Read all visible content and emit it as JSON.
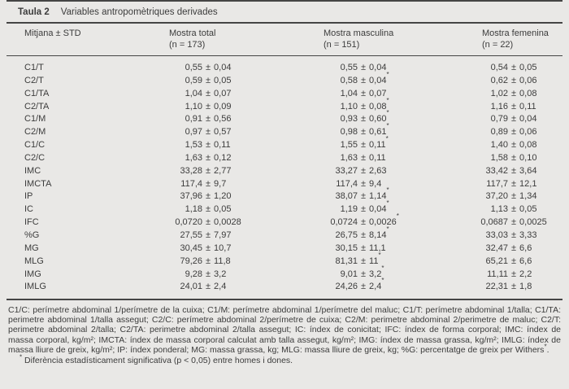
{
  "title": {
    "label": "Taula 2",
    "text": "Variables antropomètriques derivades"
  },
  "header": {
    "stat_label": "Mitjana ± STD",
    "columns": [
      {
        "name": "Mostra total",
        "n": "(n = 173)"
      },
      {
        "name": "Mostra masculina",
        "n": "(n = 151)"
      },
      {
        "name": "Mostra femenina",
        "n": "(n = 22)"
      }
    ]
  },
  "rows": [
    {
      "label": "C1/T",
      "total": "0,55 ± 0,04",
      "masc": "0,55 ± 0,04",
      "fem": "0,54 ± 0,05"
    },
    {
      "label": "C2/T",
      "total": "0,59 ± 0,05",
      "masc": "0,58 ± 0,04*",
      "fem": "0,62 ± 0,06"
    },
    {
      "label": "C1/TA",
      "total": "1,04 ± 0,07",
      "masc": "1,04 ± 0,07",
      "fem": "1,02 ± 0,08"
    },
    {
      "label": "C2/TA",
      "total": "1,10 ± 0,09",
      "masc": "1,10 ± 0,08*",
      "fem": "1,16 ± 0,11"
    },
    {
      "label": "C1/M",
      "total": "0,91 ± 0,56",
      "masc": "0,93 ± 0,60*",
      "fem": "0,79 ± 0,04"
    },
    {
      "label": "C2/M",
      "total": "0,97 ± 0,57",
      "masc": "0,98 ± 0,61*",
      "fem": "0,89 ± 0,06"
    },
    {
      "label": "C1/C",
      "total": "1,53 ± 0,11",
      "masc": "1,55 ± 0,11*",
      "fem": "1,40 ± 0,08"
    },
    {
      "label": "C2/C",
      "total": "1,63 ± 0,12",
      "masc": "1,63 ± 0,11",
      "fem": "1,58 ± 0,10"
    },
    {
      "label": "IMC",
      "total": "33,28 ± 2,77",
      "masc": "33,27 ± 2,63",
      "fem": "33,42 ± 3,64"
    },
    {
      "label": "IMCTA",
      "total": "117,4 ± 9,7",
      "masc": "117,4 ± 9,4",
      "fem": "117,7 ± 12,1"
    },
    {
      "label": "IP",
      "total": "37,96 ± 1,20",
      "masc": "38,07 ± 1,14*",
      "fem": "37,20 ± 1,34"
    },
    {
      "label": "IC",
      "total": "1,18 ± 0,05",
      "masc": "1,19 ± 0,04*",
      "fem": "1,13 ± 0,05"
    },
    {
      "label": "IFC",
      "total": "0,0720 ± 0,0028",
      "masc": "0,0724 ± 0,0026*",
      "fem": "0,0687 ± 0,0025"
    },
    {
      "label": "%G",
      "total": "27,55 ± 7,97",
      "masc": "26,75 ± 8,14*",
      "fem": "33,03 ± 3,33"
    },
    {
      "label": "MG",
      "total": "30,45 ± 10,7",
      "masc": "30,15 ± 11,1",
      "fem": "32,47 ± 6,6"
    },
    {
      "label": "MLG",
      "total": "79,26 ± 11,8",
      "masc": "81,31 ± 11*",
      "fem": "65,21 ± 6,6"
    },
    {
      "label": "IMG",
      "total": "9,28 ± 3,2",
      "masc": "9,01 ± 3,2*",
      "fem": "11,11 ± 2,2"
    },
    {
      "label": "IMLG",
      "total": "24,01 ± 2,4",
      "masc": "24,26 ± 2,4*",
      "fem": "22,31 ± 1,8"
    }
  ],
  "footnote": {
    "text": "C1/C: perímetre abdominal 1/perímetre de la cuixa; C1/M: perímetre abdominal 1/perímetre del maluc; C1/T: perímetre abdominal 1/talla; C1/TA: perimetre abdominal 1/talla assegut; C2/C: perímetre abdominal 2/perímetre de cuixa; C2/M: perimetre abdominal 2/perimetre de maluc; C2/T: perimetre abdominal 2/talla; C2/TA: perimetre abdominal 2/talla assegut; IC: índex de conicitat; IFC: índex de forma corporal; IMC: índex de massa corporal, kg/m²; IMCTA: índex de massa corporal calculat amb talla assegut, kg/m²; IMG: índex de massa grassa, kg/m²; IMLG: índex de massa lliure de greix, kg/m²; IP: índex ponderal; MG: massa grassa, kg; MLG: massa lliure de greix, kg; %G: percentatge de greix per Withers",
    "ref_mark": "*",
    "tail": "."
  },
  "note": {
    "marker": "*",
    "text": "Diferència estadísticament significativa (p < 0,05) entre homes i dones."
  },
  "colors": {
    "background": "#e9e8e6",
    "text": "#3c3c3c",
    "rule": "#454545"
  },
  "chart_data": {
    "type": "table",
    "title": "Taula 2  Variables antropomètriques derivades",
    "columns": [
      "Mitjana ± STD",
      "Mostra total (n = 173)",
      "Mostra masculina (n = 151)",
      "Mostra femenina (n = 22)"
    ],
    "rows": [
      [
        "C1/T",
        "0,55 ± 0,04",
        "0,55 ± 0,04",
        "0,54 ± 0,05"
      ],
      [
        "C2/T",
        "0,59 ± 0,05",
        "0,58 ± 0,04*",
        "0,62 ± 0,06"
      ],
      [
        "C1/TA",
        "1,04 ± 0,07",
        "1,04 ± 0,07",
        "1,02 ± 0,08"
      ],
      [
        "C2/TA",
        "1,10 ± 0,09",
        "1,10 ± 0,08*",
        "1,16 ± 0,11"
      ],
      [
        "C1/M",
        "0,91 ± 0,56",
        "0,93 ± 0,60*",
        "0,79 ± 0,04"
      ],
      [
        "C2/M",
        "0,97 ± 0,57",
        "0,98 ± 0,61*",
        "0,89 ± 0,06"
      ],
      [
        "C1/C",
        "1,53 ± 0,11",
        "1,55 ± 0,11*",
        "1,40 ± 0,08"
      ],
      [
        "C2/C",
        "1,63 ± 0,12",
        "1,63 ± 0,11",
        "1,58 ± 0,10"
      ],
      [
        "IMC",
        "33,28 ± 2,77",
        "33,27 ± 2,63",
        "33,42 ± 3,64"
      ],
      [
        "IMCTA",
        "117,4 ± 9,7",
        "117,4 ± 9,4",
        "117,7 ± 12,1"
      ],
      [
        "IP",
        "37,96 ± 1,20",
        "38,07 ± 1,14*",
        "37,20 ± 1,34"
      ],
      [
        "IC",
        "1,18 ± 0,05",
        "1,19 ± 0,04*",
        "1,13 ± 0,05"
      ],
      [
        "IFC",
        "0,0720 ± 0,0028",
        "0,0724 ± 0,0026*",
        "0,0687 ± 0,0025"
      ],
      [
        "%G",
        "27,55 ± 7,97",
        "26,75 ± 8,14*",
        "33,03 ± 3,33"
      ],
      [
        "MG",
        "30,45 ± 10,7",
        "30,15 ± 11,1",
        "32,47 ± 6,6"
      ],
      [
        "MLG",
        "79,26 ± 11,8",
        "81,31 ± 11*",
        "65,21 ± 6,6"
      ],
      [
        "IMG",
        "9,28 ± 3,2",
        "9,01 ± 3,2*",
        "11,11 ± 2,2"
      ],
      [
        "IMLG",
        "24,01 ± 2,4",
        "24,26 ± 2,4*",
        "22,31 ± 1,8"
      ]
    ]
  }
}
